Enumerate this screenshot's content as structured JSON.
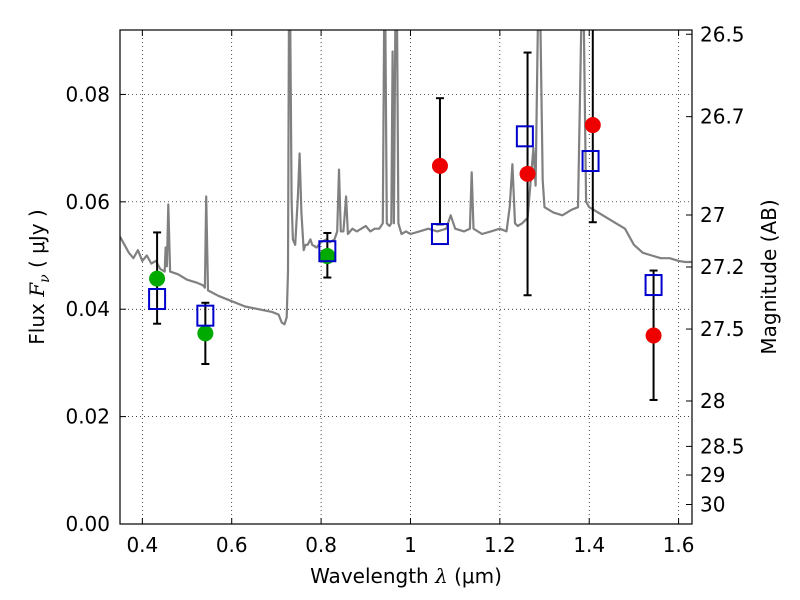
{
  "chart_data": {
    "type": "scatter",
    "title": "",
    "xlabel": {
      "prefix": "Wavelength  ",
      "symbol": "λ",
      "suffix": " (μm)"
    },
    "ylabel": {
      "prefix": "Flux  ",
      "symbol": "F",
      "subscript": "ν",
      "suffix": "  ( μJy )"
    },
    "ylabel_right": "Magnitude (AB)",
    "xlim": [
      0.35,
      1.63
    ],
    "ylim": [
      0.0,
      0.092
    ],
    "grid": true,
    "grid_style": "dotted",
    "x_ticks": [
      {
        "value": 0.4,
        "label": "0.4"
      },
      {
        "value": 0.6,
        "label": "0.6"
      },
      {
        "value": 0.8,
        "label": "0.8"
      },
      {
        "value": 1.0,
        "label": "1"
      },
      {
        "value": 1.2,
        "label": "1.2"
      },
      {
        "value": 1.4,
        "label": "1.4"
      },
      {
        "value": 1.6,
        "label": "1.6"
      }
    ],
    "y_ticks": [
      {
        "value": 0.0,
        "label": "0.00"
      },
      {
        "value": 0.02,
        "label": "0.02"
      },
      {
        "value": 0.04,
        "label": "0.04"
      },
      {
        "value": 0.06,
        "label": "0.06"
      },
      {
        "value": 0.08,
        "label": "0.08"
      }
    ],
    "right_ticks": [
      {
        "mag": 26.5,
        "label": "26.5"
      },
      {
        "mag": 26.7,
        "label": "26.7"
      },
      {
        "mag": 27.0,
        "label": "27"
      },
      {
        "mag": 27.2,
        "label": "27.2"
      },
      {
        "mag": 27.5,
        "label": "27.5"
      },
      {
        "mag": 28.0,
        "label": "28"
      },
      {
        "mag": 28.5,
        "label": "28.5"
      },
      {
        "mag": 29.0,
        "label": "29"
      },
      {
        "mag": 30.0,
        "label": "30"
      }
    ],
    "colors": {
      "spectrum": "#808080",
      "green": "#00aa00",
      "red": "#ee0000",
      "model_box": "#0000cc",
      "errorbar": "#000000"
    },
    "series": [
      {
        "marker": "circle",
        "color": "green",
        "points": [
          {
            "x": 0.433,
            "y": 0.0457,
            "err_low": 0.0373,
            "err_high": 0.0543
          },
          {
            "x": 0.541,
            "y": 0.0355,
            "err_low": 0.0298,
            "err_high": 0.0412
          },
          {
            "x": 0.814,
            "y": 0.0499,
            "err_low": 0.0459,
            "err_high": 0.0542
          }
        ]
      },
      {
        "marker": "circle",
        "color": "red",
        "points": [
          {
            "x": 1.066,
            "y": 0.0667,
            "err_low": 0.0558,
            "err_high": 0.0793
          },
          {
            "x": 1.262,
            "y": 0.0652,
            "err_low": 0.0426,
            "err_high": 0.0878
          },
          {
            "x": 1.408,
            "y": 0.0743,
            "err_low": 0.0562,
            "err_high": 0.0925
          },
          {
            "x": 1.544,
            "y": 0.0351,
            "err_low": 0.0231,
            "err_high": 0.0472
          }
        ]
      },
      {
        "marker": "open-square",
        "color": "model_box",
        "points": [
          {
            "x": 0.433,
            "y": 0.0419
          },
          {
            "x": 0.541,
            "y": 0.0388
          },
          {
            "x": 0.814,
            "y": 0.0508
          },
          {
            "x": 1.066,
            "y": 0.054
          },
          {
            "x": 1.256,
            "y": 0.0722
          },
          {
            "x": 1.403,
            "y": 0.0676
          },
          {
            "x": 1.544,
            "y": 0.0445
          }
        ]
      },
      {
        "marker": "line",
        "color": "spectrum",
        "points": [
          [
            0.35,
            0.0535
          ],
          [
            0.36,
            0.052
          ],
          [
            0.37,
            0.0505
          ],
          [
            0.38,
            0.0495
          ],
          [
            0.39,
            0.051
          ],
          [
            0.4,
            0.049
          ],
          [
            0.41,
            0.05
          ],
          [
            0.42,
            0.0485
          ],
          [
            0.43,
            0.049
          ],
          [
            0.44,
            0.0475
          ],
          [
            0.45,
            0.047
          ],
          [
            0.452,
            0.0515
          ],
          [
            0.455,
            0.048
          ],
          [
            0.458,
            0.0595
          ],
          [
            0.462,
            0.047
          ],
          [
            0.48,
            0.0465
          ],
          [
            0.5,
            0.0455
          ],
          [
            0.52,
            0.045
          ],
          [
            0.535,
            0.0445
          ],
          [
            0.54,
            0.044
          ],
          [
            0.543,
            0.061
          ],
          [
            0.547,
            0.0435
          ],
          [
            0.57,
            0.0425
          ],
          [
            0.6,
            0.0415
          ],
          [
            0.63,
            0.0405
          ],
          [
            0.66,
            0.04
          ],
          [
            0.69,
            0.0395
          ],
          [
            0.705,
            0.039
          ],
          [
            0.712,
            0.0375
          ],
          [
            0.718,
            0.0372
          ],
          [
            0.723,
            0.0385
          ],
          [
            0.726,
            0.047
          ],
          [
            0.728,
            0.092
          ],
          [
            0.731,
            0.092
          ],
          [
            0.734,
            0.06
          ],
          [
            0.737,
            0.053
          ],
          [
            0.742,
            0.052
          ],
          [
            0.748,
            0.061
          ],
          [
            0.752,
            0.069
          ],
          [
            0.756,
            0.058
          ],
          [
            0.761,
            0.051
          ],
          [
            0.765,
            0.052
          ],
          [
            0.77,
            0.052
          ],
          [
            0.776,
            0.053
          ],
          [
            0.78,
            0.052
          ],
          [
            0.79,
            0.0515
          ],
          [
            0.8,
            0.0525
          ],
          [
            0.812,
            0.053
          ],
          [
            0.82,
            0.0525
          ],
          [
            0.83,
            0.053
          ],
          [
            0.836,
            0.0545
          ],
          [
            0.84,
            0.066
          ],
          [
            0.844,
            0.0545
          ],
          [
            0.85,
            0.0545
          ],
          [
            0.856,
            0.061
          ],
          [
            0.86,
            0.054
          ],
          [
            0.87,
            0.055
          ],
          [
            0.88,
            0.0545
          ],
          [
            0.89,
            0.055
          ],
          [
            0.9,
            0.0555
          ],
          [
            0.91,
            0.0545
          ],
          [
            0.92,
            0.055
          ],
          [
            0.93,
            0.055
          ],
          [
            0.938,
            0.056
          ],
          [
            0.941,
            0.092
          ],
          [
            0.944,
            0.092
          ],
          [
            0.947,
            0.056
          ],
          [
            0.953,
            0.0555
          ],
          [
            0.957,
            0.056
          ],
          [
            0.96,
            0.088
          ],
          [
            0.963,
            0.056
          ],
          [
            0.966,
            0.092
          ],
          [
            0.97,
            0.092
          ],
          [
            0.973,
            0.056
          ],
          [
            0.98,
            0.054
          ],
          [
            0.99,
            0.0545
          ],
          [
            1.0,
            0.054
          ],
          [
            1.02,
            0.0545
          ],
          [
            1.04,
            0.055
          ],
          [
            1.06,
            0.0545
          ],
          [
            1.08,
            0.055
          ],
          [
            1.09,
            0.0575
          ],
          [
            1.1,
            0.055
          ],
          [
            1.12,
            0.0545
          ],
          [
            1.133,
            0.055
          ],
          [
            1.137,
            0.0655
          ],
          [
            1.141,
            0.055
          ],
          [
            1.16,
            0.054
          ],
          [
            1.18,
            0.0545
          ],
          [
            1.2,
            0.055
          ],
          [
            1.215,
            0.0545
          ],
          [
            1.222,
            0.059
          ],
          [
            1.228,
            0.067
          ],
          [
            1.234,
            0.056
          ],
          [
            1.24,
            0.0555
          ],
          [
            1.25,
            0.056
          ],
          [
            1.262,
            0.057
          ],
          [
            1.275,
            0.07
          ],
          [
            1.28,
            0.063
          ],
          [
            1.285,
            0.092
          ],
          [
            1.291,
            0.092
          ],
          [
            1.296,
            0.064
          ],
          [
            1.3,
            0.059
          ],
          [
            1.32,
            0.058
          ],
          [
            1.34,
            0.0575
          ],
          [
            1.36,
            0.0585
          ],
          [
            1.375,
            0.059
          ],
          [
            1.382,
            0.092
          ],
          [
            1.388,
            0.092
          ],
          [
            1.393,
            0.06
          ],
          [
            1.4,
            0.059
          ],
          [
            1.42,
            0.058
          ],
          [
            1.44,
            0.057
          ],
          [
            1.46,
            0.056
          ],
          [
            1.48,
            0.055
          ],
          [
            1.5,
            0.052
          ],
          [
            1.52,
            0.0505
          ],
          [
            1.54,
            0.05
          ],
          [
            1.56,
            0.0495
          ],
          [
            1.58,
            0.0495
          ],
          [
            1.6,
            0.049
          ],
          [
            1.615,
            0.0488
          ],
          [
            1.63,
            0.0488
          ]
        ]
      }
    ]
  }
}
